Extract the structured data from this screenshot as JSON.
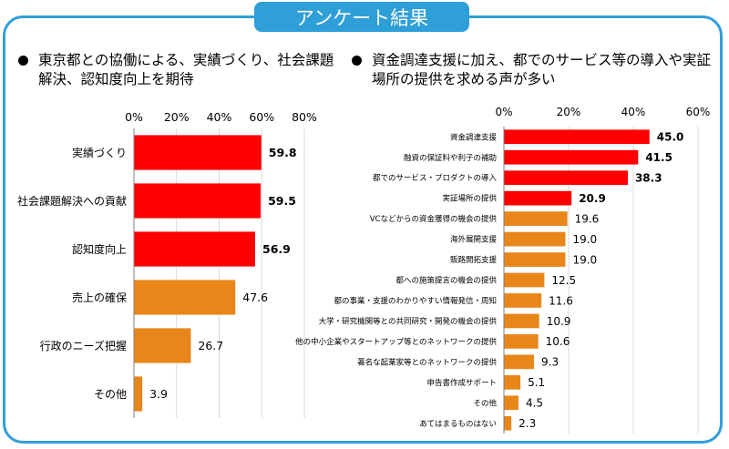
{
  "page_title": "アンケート結果",
  "colors": {
    "accent": "#2f9fd8",
    "highlight": "#ff0000",
    "normal": "#e8861a"
  },
  "left_heading": "東京都との協働による、実績づくり、社会課題解決、認知度向上を期待",
  "right_heading": "資金調達支援に加え、都でのサービス等の導入や実証場所の提供を求める声が多い",
  "chart_data": [
    {
      "type": "bar",
      "orientation": "horizontal",
      "xlim": [
        0,
        80
      ],
      "ticks": [
        "0%",
        "20%",
        "40%",
        "60%",
        "80%"
      ],
      "categories": [
        "実績づくり",
        "社会課題解決への貢献",
        "認知度向上",
        "売上の確保",
        "行政のニーズ把握",
        "その他"
      ],
      "values": [
        59.8,
        59.5,
        56.9,
        47.6,
        26.7,
        3.9
      ],
      "labels": [
        "59.8",
        "59.5",
        "56.9",
        "47.6",
        "26.7",
        "3.9"
      ],
      "highlighted_count": 3,
      "grid": true
    },
    {
      "type": "bar",
      "orientation": "horizontal",
      "xlim": [
        0,
        60
      ],
      "ticks": [
        "0%",
        "20%",
        "40%",
        "60%"
      ],
      "categories": [
        "資金調達支援",
        "融資の保証料や利子の補助",
        "都でのサービス・プロダクトの導入",
        "実証場所の提供",
        "VCなどからの資金獲得の機会の提供",
        "海外展開支援",
        "販路開拓支援",
        "都への施策提言の機会の提供",
        "都の事業・支援のわかりやすい情報発信・周知",
        "大学・研究機関等との共同研究・開発の機会の提供",
        "他の中小企業やスタートアップ等とのネットワークの提供",
        "著名な起業家等とのネットワークの提供",
        "申告書作成サポート",
        "その他",
        "あてはまるものはない"
      ],
      "values": [
        45.0,
        41.5,
        38.3,
        20.9,
        19.6,
        19.0,
        19.0,
        12.5,
        11.6,
        10.9,
        10.6,
        9.3,
        5.1,
        4.5,
        2.3
      ],
      "labels": [
        "45.0",
        "41.5",
        "38.3",
        "20.9",
        "19.6",
        "19.0",
        "19.0",
        "12.5",
        "11.6",
        "10.9",
        "10.6",
        "9.3",
        "5.1",
        "4.5",
        "2.3"
      ],
      "highlighted_count": 4,
      "grid": true
    }
  ]
}
